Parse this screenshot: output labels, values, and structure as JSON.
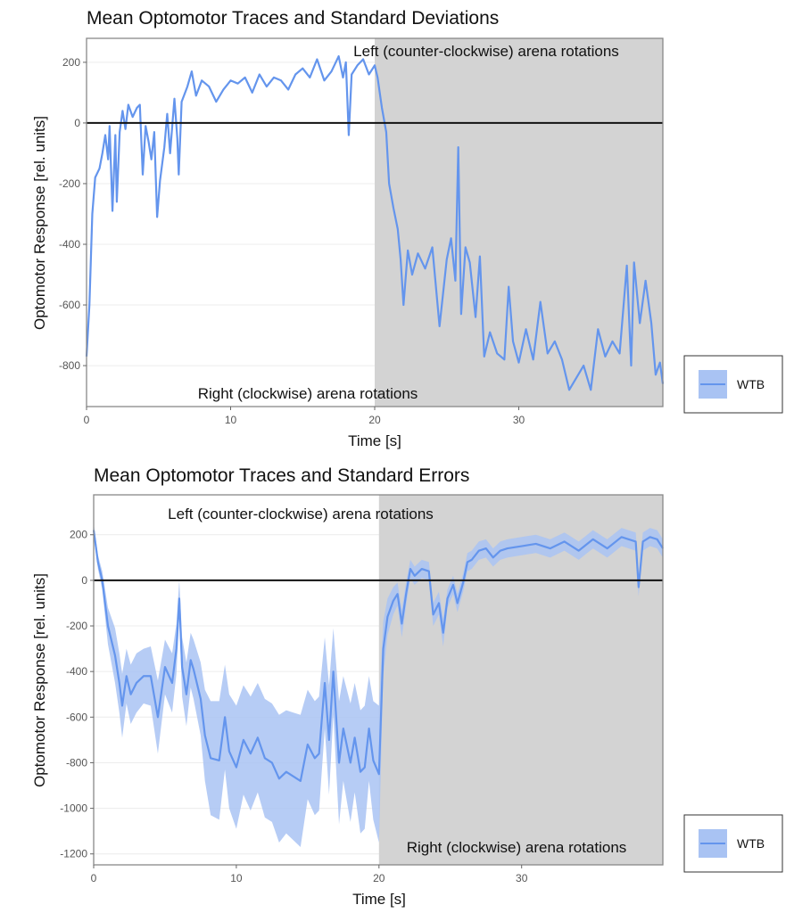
{
  "chart_data": [
    {
      "type": "line",
      "title": "Mean Optomotor Traces and Standard Deviations",
      "xlabel": "Time [s]",
      "ylabel": "Optomotor Response [rel. units]",
      "xlim": [
        0,
        40
      ],
      "ylim": [
        -935,
        279
      ],
      "xticks": [
        0,
        10,
        20,
        30
      ],
      "yticks": [
        -800,
        -600,
        -400,
        -200,
        0,
        200
      ],
      "xtick_labels": [
        "0",
        "10",
        "20",
        "30"
      ],
      "ytick_labels": [
        "-800",
        "-600",
        "-400",
        "-200",
        "0",
        "200"
      ],
      "grid": true,
      "shaded_region": [
        20,
        40
      ],
      "reference_line": 0,
      "annotations": [
        "Left (counter-clockwise) arena rotations",
        "Right (clockwise) arena rotations"
      ],
      "legend": {
        "entries": [
          "WTB"
        ],
        "placement": "right"
      },
      "colors": {
        "line": "#6495ED",
        "band": "#A9C3F3",
        "shade": "#D3D3D3"
      },
      "series": [
        {
          "name": "WTB",
          "x": [
            0,
            0.2,
            0.4,
            0.6,
            0.9,
            1.1,
            1.3,
            1.5,
            1.6,
            1.8,
            2.0,
            2.1,
            2.3,
            2.5,
            2.7,
            2.9,
            3.2,
            3.5,
            3.7,
            3.9,
            4.1,
            4.3,
            4.5,
            4.7,
            4.9,
            5.1,
            5.4,
            5.6,
            5.8,
            6.1,
            6.3,
            6.4,
            6.6,
            7.0,
            7.3,
            7.6,
            8.0,
            8.5,
            9.0,
            9.5,
            10,
            10.5,
            11,
            11.5,
            12,
            12.5,
            13,
            13.5,
            14,
            14.5,
            15,
            15.5,
            16,
            16.5,
            17,
            17.5,
            17.8,
            18.0,
            18.2,
            18.4,
            18.8,
            19.2,
            19.6,
            20,
            20.2,
            20.5,
            20.8,
            21.0,
            21.3,
            21.6,
            21.8,
            22.0,
            22.3,
            22.6,
            23,
            23.5,
            24,
            24.5,
            25,
            25.3,
            25.6,
            25.8,
            26,
            26.3,
            26.6,
            27,
            27.3,
            27.6,
            28,
            28.5,
            29,
            29.3,
            29.6,
            30,
            30.5,
            31,
            31.5,
            32,
            32.5,
            33,
            33.5,
            34,
            34.5,
            35,
            35.5,
            36,
            36.5,
            37,
            37.5,
            37.8,
            38,
            38.4,
            38.8,
            39.2,
            39.5,
            39.8,
            40
          ],
          "y": [
            -770,
            -600,
            -300,
            -180,
            -150,
            -100,
            -40,
            -120,
            -10,
            -290,
            -40,
            -260,
            -30,
            40,
            -20,
            60,
            20,
            50,
            60,
            -170,
            -10,
            -60,
            -120,
            -30,
            -310,
            -190,
            -80,
            30,
            -100,
            80,
            -50,
            -170,
            70,
            120,
            170,
            90,
            140,
            120,
            70,
            110,
            140,
            130,
            150,
            100,
            160,
            120,
            150,
            140,
            110,
            160,
            180,
            150,
            210,
            140,
            170,
            220,
            150,
            200,
            -40,
            160,
            190,
            210,
            160,
            190,
            150,
            50,
            -30,
            -200,
            -280,
            -350,
            -450,
            -600,
            -420,
            -500,
            -430,
            -480,
            -410,
            -670,
            -450,
            -380,
            -520,
            -80,
            -630,
            -410,
            -460,
            -640,
            -440,
            -770,
            -690,
            -760,
            -780,
            -540,
            -720,
            -790,
            -680,
            -780,
            -590,
            -760,
            -720,
            -780,
            -880,
            -840,
            -800,
            -880,
            -680,
            -770,
            -720,
            -760,
            -470,
            -800,
            -460,
            -660,
            -520,
            -660,
            -830,
            -790,
            -860
          ]
        }
      ]
    },
    {
      "type": "line",
      "title": "Mean Optomotor Traces and Standard Errors",
      "xlabel": "Time [s]",
      "ylabel": "Optomotor Response [rel. units]",
      "xlim": [
        0,
        39.9
      ],
      "ylim": [
        -1248,
        375
      ],
      "xticks": [
        0,
        10,
        20,
        30
      ],
      "yticks": [
        -1200,
        -1000,
        -800,
        -600,
        -400,
        -200,
        0,
        200
      ],
      "xtick_labels": [
        "0",
        "10",
        "20",
        "30"
      ],
      "ytick_labels": [
        "-1200",
        "-1000",
        "-800",
        "-600",
        "-400",
        "-200",
        "0",
        "200"
      ],
      "grid": true,
      "shaded_region": [
        20,
        39.9
      ],
      "reference_line": 0,
      "annotations": [
        "Left (counter-clockwise) arena rotations",
        "Right (clockwise) arena rotations"
      ],
      "legend": {
        "entries": [
          "WTB"
        ],
        "placement": "right"
      },
      "colors": {
        "line": "#6495ED",
        "band": "#A9C3F3",
        "shade": "#D3D3D3"
      },
      "series": [
        {
          "name": "WTB",
          "x": [
            0,
            0.3,
            0.6,
            1,
            1.5,
            1.8,
            2,
            2.3,
            2.6,
            3,
            3.5,
            4,
            4.5,
            5,
            5.5,
            5.8,
            6,
            6.2,
            6.5,
            6.8,
            7,
            7.5,
            7.8,
            8.2,
            8.8,
            9.2,
            9.5,
            10,
            10.5,
            11,
            11.5,
            12,
            12.5,
            13,
            13.5,
            14,
            14.5,
            15,
            15.5,
            15.8,
            16.2,
            16.5,
            16.8,
            17.2,
            17.5,
            18,
            18.3,
            18.7,
            19,
            19.3,
            19.6,
            20,
            20.3,
            20.6,
            21,
            21.3,
            21.6,
            21.9,
            22.2,
            22.5,
            23,
            23.5,
            23.8,
            24.2,
            24.5,
            24.8,
            25.2,
            25.5,
            25.9,
            26.2,
            26.5,
            27,
            27.5,
            28,
            28.5,
            29,
            30,
            31,
            32,
            33,
            34,
            35,
            36,
            37,
            38,
            38.2,
            38.5,
            39,
            39.5,
            39.9
          ],
          "y": [
            220,
            80,
            0,
            -200,
            -330,
            -450,
            -550,
            -420,
            -500,
            -450,
            -420,
            -420,
            -600,
            -380,
            -450,
            -300,
            -80,
            -380,
            -500,
            -350,
            -390,
            -520,
            -680,
            -780,
            -790,
            -600,
            -750,
            -820,
            -700,
            -760,
            -690,
            -780,
            -800,
            -870,
            -840,
            -860,
            -880,
            -720,
            -780,
            -760,
            -450,
            -700,
            -400,
            -800,
            -650,
            -800,
            -690,
            -840,
            -820,
            -650,
            -790,
            -850,
            -300,
            -160,
            -90,
            -60,
            -190,
            -60,
            50,
            20,
            50,
            40,
            -150,
            -100,
            -230,
            -80,
            -20,
            -100,
            -10,
            80,
            90,
            130,
            140,
            100,
            130,
            140,
            150,
            160,
            140,
            170,
            130,
            180,
            140,
            190,
            170,
            -30,
            170,
            190,
            180,
            140
          ],
          "se": [
            30,
            30,
            40,
            80,
            120,
            130,
            140,
            120,
            130,
            130,
            120,
            130,
            160,
            120,
            130,
            110,
            80,
            130,
            140,
            120,
            130,
            160,
            200,
            250,
            260,
            230,
            250,
            270,
            240,
            250,
            240,
            260,
            260,
            280,
            270,
            280,
            290,
            240,
            250,
            250,
            200,
            240,
            190,
            270,
            230,
            260,
            240,
            270,
            270,
            230,
            260,
            300,
            120,
            80,
            60,
            50,
            60,
            50,
            40,
            40,
            40,
            40,
            50,
            50,
            60,
            40,
            40,
            40,
            40,
            40,
            40,
            40,
            40,
            40,
            40,
            40,
            40,
            40,
            40,
            40,
            40,
            40,
            40,
            40,
            40,
            40,
            40,
            40,
            40,
            40
          ]
        }
      ]
    }
  ]
}
